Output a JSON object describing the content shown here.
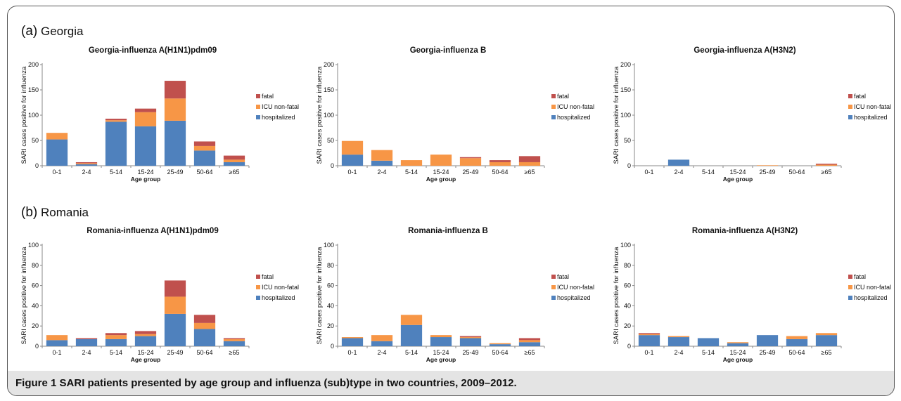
{
  "sections": [
    {
      "letter": "(a)",
      "name": "Georgia"
    },
    {
      "letter": "(b)",
      "name": "Romania"
    }
  ],
  "caption": {
    "label": "Figure 1",
    "text": "SARI patients presented by age group and influenza (sub)type in two countries, 2009–2012."
  },
  "colors": {
    "hospitalized": "#4f81bd",
    "icu": "#f79646",
    "fatal": "#c0504d"
  },
  "chart_data": [
    {
      "type": "bar",
      "stacked": true,
      "title": "Georgia-influenza A(H1N1)pdm09",
      "xlabel": "Age group",
      "ylabel": "SARI cases positive for influenza",
      "ylim": [
        0,
        200
      ],
      "yticks": [
        0,
        50,
        100,
        150,
        200
      ],
      "categories": [
        "0-1",
        "2-4",
        "5-14",
        "15-24",
        "25-49",
        "50-64",
        "≥65"
      ],
      "legend_position": "right",
      "series": [
        {
          "name": "hospitalized",
          "values": [
            52,
            3,
            87,
            78,
            89,
            30,
            7
          ]
        },
        {
          "name": "ICU non-fatal",
          "values": [
            13,
            2,
            3,
            28,
            44,
            9,
            5
          ]
        },
        {
          "name": "fatal",
          "values": [
            0,
            2,
            3,
            7,
            35,
            9,
            8
          ]
        }
      ]
    },
    {
      "type": "bar",
      "stacked": true,
      "title": "Georgia-influenza B",
      "xlabel": "Age group",
      "ylabel": "SARI cases positive for influenza",
      "ylim": [
        0,
        200
      ],
      "yticks": [
        0,
        50,
        100,
        150,
        200
      ],
      "categories": [
        "0-1",
        "2-4",
        "5-14",
        "15-24",
        "25-49",
        "50-64",
        "≥65"
      ],
      "legend_position": "right",
      "series": [
        {
          "name": "hospitalized",
          "values": [
            22,
            10,
            0,
            0,
            0,
            0,
            0
          ]
        },
        {
          "name": "ICU non-fatal",
          "values": [
            27,
            21,
            11,
            22,
            15,
            7,
            7
          ]
        },
        {
          "name": "fatal",
          "values": [
            0,
            0,
            0,
            0,
            2,
            4,
            12
          ]
        }
      ]
    },
    {
      "type": "bar",
      "stacked": true,
      "title": "Georgia-influenza A(H3N2)",
      "xlabel": "Age group",
      "ylabel": "SARI cases positive for influenza",
      "ylim": [
        0,
        200
      ],
      "yticks": [
        0,
        50,
        100,
        150,
        200
      ],
      "categories": [
        "0-1",
        "2-4",
        "5-14",
        "15-24",
        "25-49",
        "50-64",
        "≥65"
      ],
      "legend_position": "right",
      "series": [
        {
          "name": "hospitalized",
          "values": [
            0,
            12,
            0,
            0,
            0,
            0,
            0
          ]
        },
        {
          "name": "ICU non-fatal",
          "values": [
            0,
            0,
            0,
            0,
            1,
            0,
            2
          ]
        },
        {
          "name": "fatal",
          "values": [
            0,
            0,
            0,
            0,
            0,
            0,
            2
          ]
        }
      ]
    },
    {
      "type": "bar",
      "stacked": true,
      "title": "Romania-influenza A(H1N1)pdm09",
      "xlabel": "Age group",
      "ylabel": "SARI cases positive for influenza",
      "ylim": [
        0,
        100
      ],
      "yticks": [
        0,
        20,
        40,
        60,
        80,
        100
      ],
      "categories": [
        "0-1",
        "2-4",
        "5-14",
        "15-24",
        "25-49",
        "50-64",
        "≥65"
      ],
      "legend_position": "right",
      "series": [
        {
          "name": "hospitalized",
          "values": [
            6,
            7,
            7,
            10,
            32,
            17,
            5
          ]
        },
        {
          "name": "ICU non-fatal",
          "values": [
            5,
            0,
            4,
            2,
            17,
            6,
            2
          ]
        },
        {
          "name": "fatal",
          "values": [
            0,
            1,
            2,
            3,
            16,
            8,
            1
          ]
        }
      ]
    },
    {
      "type": "bar",
      "stacked": true,
      "title": "Romania-influenza B",
      "xlabel": "Age group",
      "ylabel": "SARI cases positive for influenza",
      "ylim": [
        0,
        100
      ],
      "yticks": [
        0,
        20,
        40,
        60,
        80,
        100
      ],
      "categories": [
        "0-1",
        "2-4",
        "5-14",
        "15-24",
        "25-49",
        "50-64",
        "≥65"
      ],
      "legend_position": "right",
      "series": [
        {
          "name": "hospitalized",
          "values": [
            8,
            5,
            21,
            9,
            8,
            2,
            4
          ]
        },
        {
          "name": "ICU non-fatal",
          "values": [
            1,
            6,
            10,
            2,
            1,
            1,
            2
          ]
        },
        {
          "name": "fatal",
          "values": [
            0,
            0,
            0,
            0,
            1,
            0,
            2
          ]
        }
      ]
    },
    {
      "type": "bar",
      "stacked": true,
      "title": "Romania-influenza A(H3N2)",
      "xlabel": "Age group",
      "ylabel": "SARI cases positive for influenza",
      "ylim": [
        0,
        100
      ],
      "yticks": [
        0,
        20,
        40,
        60,
        80,
        100
      ],
      "categories": [
        "0-1",
        "2-4",
        "5-14",
        "15-24",
        "25-49",
        "50-64",
        "≥65"
      ],
      "legend_position": "right",
      "series": [
        {
          "name": "hospitalized",
          "values": [
            11,
            9,
            8,
            3,
            11,
            7,
            11
          ]
        },
        {
          "name": "ICU non-fatal",
          "values": [
            1,
            1,
            0,
            1,
            0,
            3,
            2
          ]
        },
        {
          "name": "fatal",
          "values": [
            1,
            0,
            0,
            0,
            0,
            0,
            0
          ]
        }
      ]
    }
  ]
}
